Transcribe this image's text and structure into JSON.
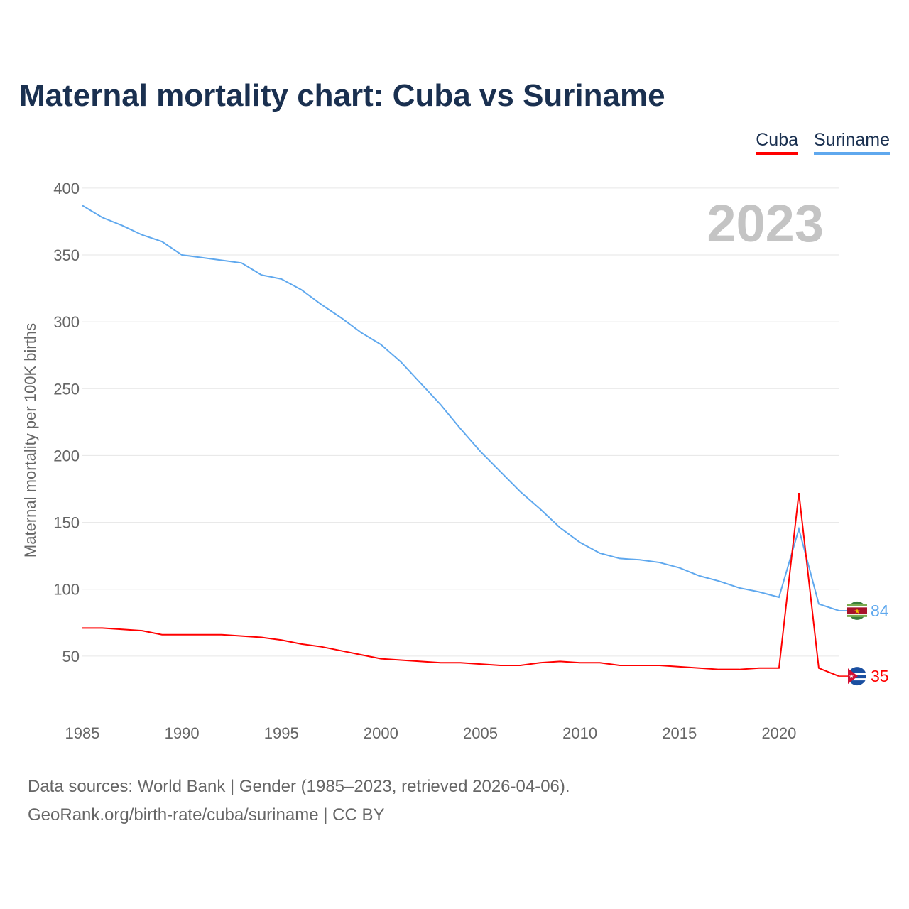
{
  "title": "Maternal mortality chart: Cuba vs Suriname",
  "year_label": "2023",
  "source_line1": "Data sources: World Bank | Gender (1985–2023, retrieved 2026-04-06).",
  "source_line2": "GeoRank.org/birth-rate/cuba/suriname | CC BY",
  "chart_data": {
    "type": "line",
    "title": "Maternal mortality chart: Cuba vs Suriname",
    "xlabel": "",
    "ylabel": "Maternal mortality per 100K births",
    "xlim": [
      1985,
      2023
    ],
    "ylim": [
      0,
      400
    ],
    "xticks": [
      1985,
      1990,
      1995,
      2000,
      2005,
      2010,
      2015,
      2020
    ],
    "yticks": [
      50,
      100,
      150,
      200,
      250,
      300,
      350,
      400
    ],
    "grid": true,
    "legend_placement": "top-right",
    "x": [
      1985,
      1986,
      1987,
      1988,
      1989,
      1990,
      1991,
      1992,
      1993,
      1994,
      1995,
      1996,
      1997,
      1998,
      1999,
      2000,
      2001,
      2002,
      2003,
      2004,
      2005,
      2006,
      2007,
      2008,
      2009,
      2010,
      2011,
      2012,
      2013,
      2014,
      2015,
      2016,
      2017,
      2018,
      2019,
      2020,
      2021,
      2022,
      2023
    ],
    "series": [
      {
        "name": "Cuba",
        "color": "#ff0000",
        "end_label": "35",
        "values": [
          71,
          71,
          70,
          69,
          66,
          66,
          66,
          66,
          65,
          64,
          62,
          59,
          57,
          54,
          51,
          48,
          47,
          46,
          45,
          45,
          44,
          43,
          43,
          45,
          46,
          45,
          45,
          43,
          43,
          43,
          42,
          41,
          40,
          40,
          41,
          41,
          172,
          41,
          35
        ]
      },
      {
        "name": "Suriname",
        "color": "#5fa8ee",
        "end_label": "84",
        "values": [
          387,
          378,
          372,
          365,
          360,
          350,
          348,
          346,
          344,
          335,
          332,
          324,
          313,
          303,
          292,
          283,
          270,
          254,
          238,
          220,
          203,
          188,
          173,
          160,
          146,
          135,
          127,
          123,
          122,
          120,
          116,
          110,
          106,
          101,
          98,
          94,
          145,
          89,
          84
        ]
      }
    ]
  }
}
